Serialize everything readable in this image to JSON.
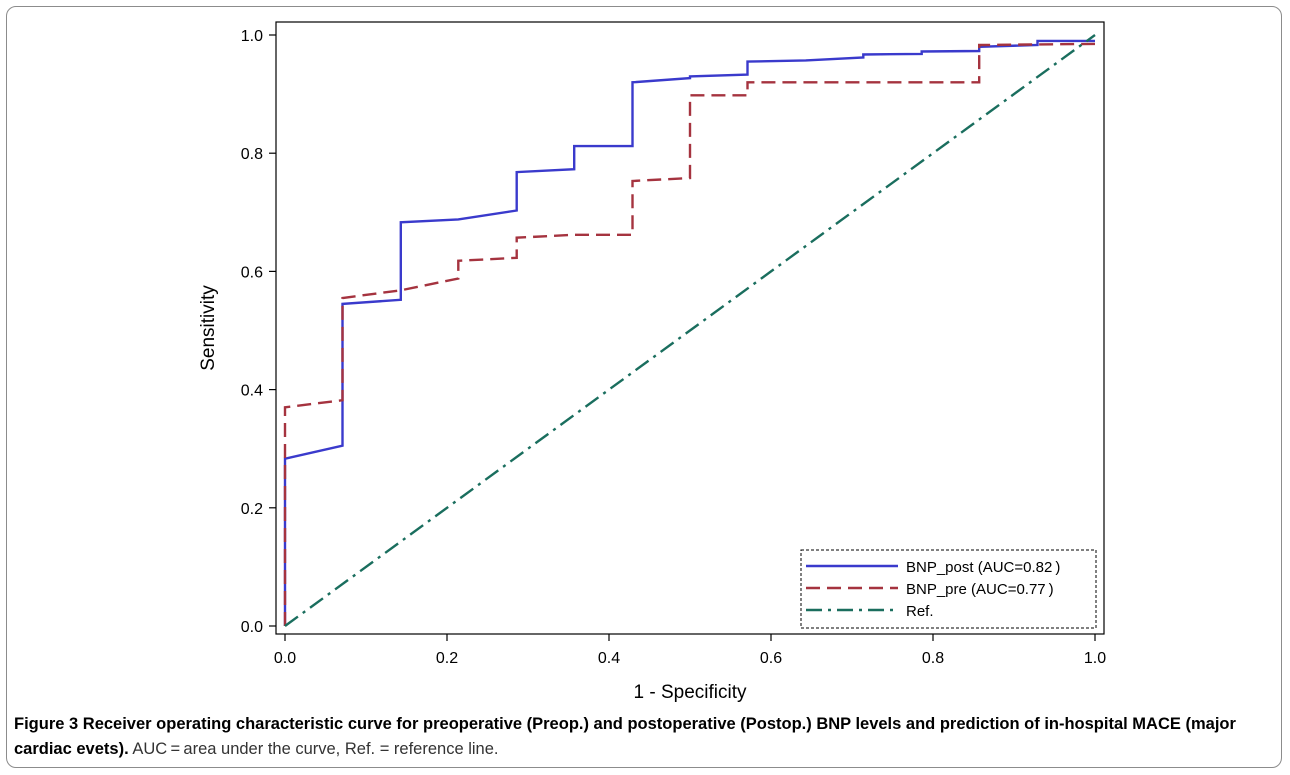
{
  "chart_data": {
    "type": "line",
    "xlabel": "1 - Specificity",
    "ylabel": "Sensitivity",
    "xlim": [
      0,
      1
    ],
    "ylim": [
      0,
      1
    ],
    "x_ticks": [
      "0.0",
      "0.2",
      "0.4",
      "0.6",
      "0.8",
      "1.0"
    ],
    "y_ticks": [
      "0.0",
      "0.2",
      "0.4",
      "0.6",
      "0.8",
      "1.0"
    ],
    "grid": false,
    "legend_position": "bottom-right",
    "series": [
      {
        "name": "BNP_post (AUC=0.82 )",
        "color": "#3a3acc",
        "style": "solid",
        "x": [
          0,
          0,
          0.071,
          0.071,
          0.143,
          0.143,
          0.214,
          0.286,
          0.286,
          0.357,
          0.357,
          0.429,
          0.429,
          0.5,
          0.5,
          0.571,
          0.571,
          0.643,
          0.714,
          0.714,
          0.786,
          0.786,
          0.857,
          0.857,
          0.929,
          0.929,
          1.0
        ],
        "y": [
          0,
          0.283,
          0.305,
          0.545,
          0.552,
          0.683,
          0.688,
          0.703,
          0.768,
          0.773,
          0.812,
          0.812,
          0.92,
          0.927,
          0.93,
          0.933,
          0.955,
          0.957,
          0.962,
          0.967,
          0.968,
          0.972,
          0.973,
          0.98,
          0.983,
          0.99,
          0.99
        ]
      },
      {
        "name": "BNP_pre (AUC=0.77 )",
        "color": "#a5333f",
        "style": "dashed",
        "x": [
          0,
          0,
          0.071,
          0.071,
          0.143,
          0.214,
          0.214,
          0.286,
          0.286,
          0.357,
          0.429,
          0.429,
          0.5,
          0.5,
          0.571,
          0.571,
          0.857,
          0.857,
          1.0
        ],
        "y": [
          0,
          0.37,
          0.382,
          0.555,
          0.568,
          0.588,
          0.618,
          0.623,
          0.657,
          0.662,
          0.662,
          0.753,
          0.758,
          0.898,
          0.898,
          0.92,
          0.92,
          0.983,
          0.985
        ]
      },
      {
        "name": "Ref.",
        "color": "#1a6e5e",
        "style": "dashdot",
        "x": [
          0,
          1
        ],
        "y": [
          0,
          1
        ]
      }
    ]
  },
  "caption": {
    "label": "Figure 3",
    "title": "Receiver operating characteristic curve for preoperative (Preop.) and postoperative (Postop.) BNP levels and prediction of in-hospital MACE (major cardiac evets).",
    "note": "AUC = area under the curve, Ref. = reference line."
  }
}
